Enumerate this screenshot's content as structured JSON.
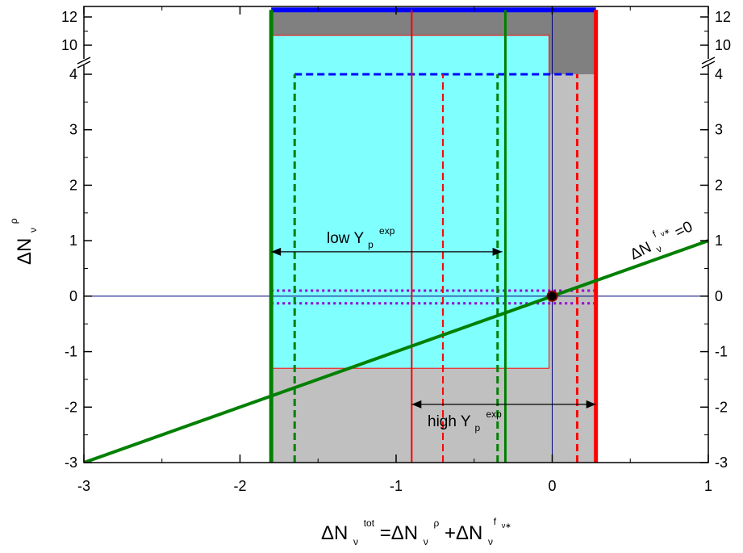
{
  "chart_data": {
    "type": "line",
    "xlim": [
      -3,
      1
    ],
    "ylim_lower": [
      -3,
      4
    ],
    "ylim_upper": [
      10,
      12.5
    ],
    "y_axis_break": true,
    "y_break_between": [
      4,
      10
    ],
    "grid": false,
    "x_ticks": [
      {
        "value": -3,
        "label": "-3"
      },
      {
        "value": -2,
        "label": "-2"
      },
      {
        "value": -1,
        "label": "-1"
      },
      {
        "value": 0,
        "label": "0"
      },
      {
        "value": 1,
        "label": "1"
      }
    ],
    "y_ticks": [
      {
        "value": -3,
        "label": "-3"
      },
      {
        "value": -2,
        "label": "-2"
      },
      {
        "value": -1,
        "label": "-1"
      },
      {
        "value": 0,
        "label": "0"
      },
      {
        "value": 1,
        "label": "1"
      },
      {
        "value": 2,
        "label": "2"
      },
      {
        "value": 3,
        "label": "3"
      },
      {
        "value": 4,
        "label": "4"
      },
      {
        "value": 10,
        "label": "10"
      },
      {
        "value": 12,
        "label": "12"
      }
    ],
    "xlabel": {
      "base": "ΔN",
      "sub": "ν",
      "sup": "tot",
      "middle": "=ΔN",
      "sub2": "ν",
      "sup2": "ρ",
      "plus": "+ΔN",
      "sub3": "ν",
      "sup3": "f",
      "sup3_sub": "ν∗"
    },
    "ylabel": {
      "base": "ΔN",
      "sub": "ν",
      "sup": "ρ"
    },
    "regions": [
      {
        "name": "dark-gray-region",
        "color": "#808080",
        "x": [
          -1.8,
          0.28
        ],
        "y": [
          -3,
          12.5
        ]
      },
      {
        "name": "light-gray-region",
        "color": "#c0c0c0",
        "x": [
          -1.8,
          0.28
        ],
        "y": [
          -3,
          4
        ]
      },
      {
        "name": "cyan-region",
        "color": "#80ffff",
        "x": [
          -1.8,
          -0.02
        ],
        "y": [
          -1.3,
          10.7
        ]
      }
    ],
    "vertical_lines": [
      {
        "name": "thick-green-line",
        "x": -1.8,
        "color": "#008000",
        "style": "solid",
        "width": 5,
        "y": [
          -3,
          12.5
        ]
      },
      {
        "name": "green-line",
        "x": -0.3,
        "color": "#008000",
        "style": "solid",
        "width": 3,
        "y": [
          -3,
          12.5
        ]
      },
      {
        "name": "red-line",
        "x": -0.9,
        "color": "#ff0000",
        "style": "solid",
        "width": 2,
        "y": [
          -3,
          12.5
        ]
      },
      {
        "name": "thick-red-line",
        "x": 0.28,
        "color": "#ff0000",
        "style": "solid",
        "width": 5,
        "y": [
          -3,
          12.5
        ]
      },
      {
        "name": "navy-vertical-line",
        "x": 0,
        "color": "#000080",
        "style": "solid",
        "width": 1,
        "y": [
          -3,
          12.5
        ]
      },
      {
        "name": "dashed-green-line",
        "x": -1.65,
        "color": "#008000",
        "style": "dashed",
        "width": 3,
        "y": [
          -3,
          4
        ]
      },
      {
        "name": "dashed-green-line",
        "x": -0.35,
        "color": "#008000",
        "style": "dashed",
        "width": 3,
        "y": [
          -3,
          4
        ]
      },
      {
        "name": "dashed-red-line",
        "x": -0.7,
        "color": "#ff0000",
        "style": "dashed",
        "width": 2,
        "y": [
          -3,
          4
        ]
      },
      {
        "name": "dashed-red-line",
        "x": 0.16,
        "color": "#ff0000",
        "style": "dashed",
        "width": 3,
        "y": [
          -3,
          4
        ]
      }
    ],
    "horizontal_lines": [
      {
        "name": "blue-top-line",
        "y": 12.5,
        "color": "#0000ff",
        "style": "solid",
        "width": 6,
        "x": [
          -1.8,
          0.28
        ]
      },
      {
        "name": "dashed-blue-line",
        "y": 4,
        "color": "#0000ff",
        "style": "dashed",
        "width": 3,
        "x": [
          -1.65,
          0.16
        ]
      },
      {
        "name": "navy-horizontal-line",
        "y": 0,
        "color": "#000080",
        "style": "solid",
        "width": 1,
        "x": [
          -3,
          1
        ]
      },
      {
        "name": "dotted-purple-line",
        "y": 0.1,
        "color": "#9400d3",
        "style": "dotted",
        "width": 3,
        "x": [
          -1.8,
          0.28
        ]
      },
      {
        "name": "dotted-purple-line",
        "y": -0.13,
        "color": "#9400d3",
        "style": "dotted",
        "width": 3,
        "x": [
          -1.8,
          0.28
        ]
      }
    ],
    "series": [
      {
        "color": "#008000",
        "x": [
          -3,
          1
        ],
        "y": [
          -3,
          1
        ]
      }
    ],
    "points": [
      {
        "name": "origin-marker",
        "x": 0,
        "y": 0,
        "color": "#000000"
      }
    ],
    "annotations": {
      "low": {
        "text": "low Y",
        "sub": "p",
        "sup": "exp",
        "arrow_x": [
          -1.8,
          -0.32
        ],
        "arrow_y": 0.8
      },
      "high": {
        "text": "high Y",
        "sub": "p",
        "sup": "exp",
        "arrow_x": [
          -0.9,
          0.28
        ],
        "arrow_y": -1.95
      },
      "line_label": {
        "text": "ΔN",
        "sub": "ν",
        "sup": "f",
        "sup_sub": "ν∗",
        "suffix": "=0"
      }
    }
  }
}
